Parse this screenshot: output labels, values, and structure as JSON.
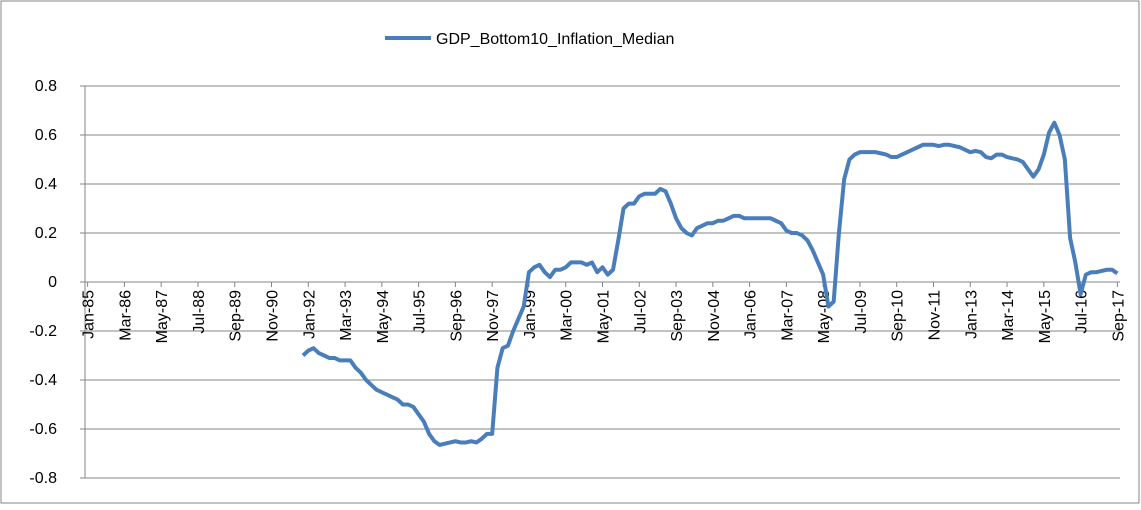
{
  "chart_data": {
    "type": "line",
    "categories": [
      "Jan-85",
      null,
      null,
      null,
      null,
      null,
      null,
      "Mar-86",
      null,
      null,
      null,
      null,
      null,
      null,
      "May-87",
      null,
      null,
      null,
      null,
      null,
      null,
      "Jul-88",
      null,
      null,
      null,
      null,
      null,
      null,
      "Sep-89",
      null,
      null,
      null,
      null,
      null,
      null,
      "Nov-90",
      null,
      null,
      null,
      null,
      null,
      null,
      "Jan-92",
      null,
      null,
      null,
      null,
      null,
      null,
      "Mar-93",
      null,
      null,
      null,
      null,
      null,
      null,
      "May-94",
      null,
      null,
      null,
      null,
      null,
      null,
      "Jul-95",
      null,
      null,
      null,
      null,
      null,
      null,
      "Sep-96",
      null,
      null,
      null,
      null,
      null,
      null,
      "Nov-97",
      null,
      null,
      null,
      null,
      null,
      null,
      "Jan-99",
      null,
      null,
      null,
      null,
      null,
      null,
      "Mar-00",
      null,
      null,
      null,
      null,
      null,
      null,
      "May-01",
      null,
      null,
      null,
      null,
      null,
      null,
      "Jul-02",
      null,
      null,
      null,
      null,
      null,
      null,
      "Sep-03",
      null,
      null,
      null,
      null,
      null,
      null,
      "Nov-04",
      null,
      null,
      null,
      null,
      null,
      null,
      "Jan-06",
      null,
      null,
      null,
      null,
      null,
      null,
      "Mar-07",
      null,
      null,
      null,
      null,
      null,
      null,
      "May-08",
      null,
      null,
      null,
      null,
      null,
      null,
      "Jul-09",
      null,
      null,
      null,
      null,
      null,
      null,
      "Sep-10",
      null,
      null,
      null,
      null,
      null,
      null,
      "Nov-11",
      null,
      null,
      null,
      null,
      null,
      null,
      "Jan-13",
      null,
      null,
      null,
      null,
      null,
      null,
      "Mar-14",
      null,
      null,
      null,
      null,
      null,
      null,
      "May-15",
      null,
      null,
      null,
      null,
      null,
      null,
      "Jul-16",
      null,
      null,
      null,
      null,
      null,
      null,
      "Sep-17"
    ],
    "series": [
      {
        "name": "GDP_Bottom10_Inflation_Median",
        "color": "#4a7ebb",
        "values": [
          null,
          null,
          null,
          null,
          null,
          null,
          null,
          null,
          null,
          null,
          null,
          null,
          null,
          null,
          null,
          null,
          null,
          null,
          null,
          null,
          null,
          null,
          null,
          null,
          null,
          null,
          null,
          null,
          null,
          null,
          null,
          null,
          null,
          null,
          null,
          null,
          null,
          null,
          null,
          null,
          null,
          -0.3,
          -0.28,
          -0.27,
          -0.29,
          -0.3,
          -0.31,
          -0.31,
          -0.32,
          -0.32,
          -0.32,
          -0.35,
          -0.37,
          -0.4,
          -0.42,
          -0.44,
          -0.45,
          -0.46,
          -0.47,
          -0.48,
          -0.5,
          -0.5,
          -0.51,
          -0.54,
          -0.57,
          -0.62,
          -0.65,
          -0.665,
          -0.66,
          -0.655,
          -0.65,
          -0.655,
          -0.655,
          -0.65,
          -0.655,
          -0.64,
          -0.62,
          -0.62,
          -0.35,
          -0.27,
          -0.26,
          -0.2,
          -0.15,
          -0.1,
          0.04,
          0.06,
          0.07,
          0.04,
          0.02,
          0.05,
          0.05,
          0.06,
          0.08,
          0.08,
          0.08,
          0.07,
          0.08,
          0.04,
          0.06,
          0.03,
          0.05,
          0.17,
          0.3,
          0.32,
          0.32,
          0.35,
          0.36,
          0.36,
          0.36,
          0.38,
          0.37,
          0.32,
          0.26,
          0.22,
          0.2,
          0.19,
          0.22,
          0.23,
          0.24,
          0.24,
          0.25,
          0.25,
          0.26,
          0.27,
          0.27,
          0.26,
          0.26,
          0.26,
          0.26,
          0.26,
          0.26,
          0.25,
          0.24,
          0.21,
          0.2,
          0.2,
          0.19,
          0.17,
          0.13,
          0.08,
          0.03,
          -0.1,
          -0.08,
          0.2,
          0.42,
          0.5,
          0.52,
          0.53,
          0.53,
          0.53,
          0.53,
          0.525,
          0.52,
          0.51,
          0.51,
          0.52,
          0.53,
          0.54,
          0.55,
          0.56,
          0.56,
          0.56,
          0.555,
          0.56,
          0.56,
          0.555,
          0.55,
          0.54,
          0.53,
          0.535,
          0.53,
          0.51,
          0.505,
          0.52,
          0.52,
          0.51,
          0.505,
          0.5,
          0.49,
          0.46,
          0.43,
          0.46,
          0.52,
          0.61,
          0.65,
          0.6,
          0.5,
          0.18,
          0.08,
          -0.05,
          0.03,
          0.04,
          0.04,
          0.045,
          0.05,
          0.05,
          0.035
        ]
      }
    ],
    "ylim": [
      -0.8,
      0.8
    ],
    "yticks": [
      -0.8,
      -0.6,
      -0.4,
      -0.2,
      0,
      0.2,
      0.4,
      0.6,
      0.8
    ],
    "grid": true,
    "legend": "top"
  }
}
